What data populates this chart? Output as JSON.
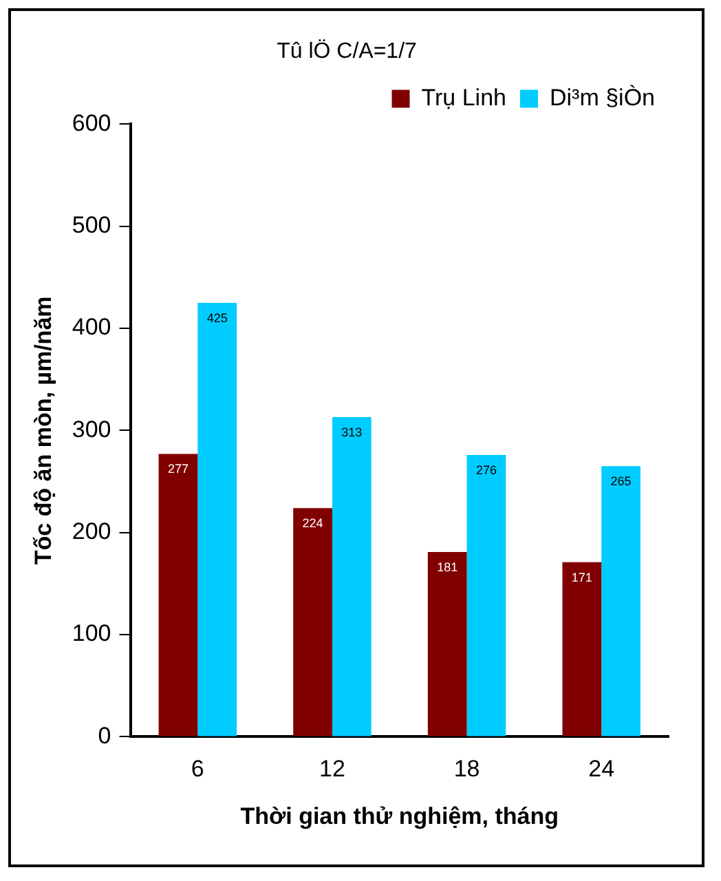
{
  "chart_data": {
    "type": "bar",
    "title": "Tû lÖ C/A=1/7",
    "xlabel": "Thời gian thử nghiệm, tháng",
    "ylabel": "Tốc độ ăn mòn, µm/năm",
    "categories": [
      "6",
      "12",
      "18",
      "24"
    ],
    "series": [
      {
        "name": "Trụ Linh",
        "color": "#800000",
        "values": [
          277,
          224,
          181,
          171
        ]
      },
      {
        "name": "Di³m §iÒn",
        "color": "#00ccff",
        "values": [
          425,
          313,
          276,
          265
        ]
      }
    ],
    "ylim": [
      0,
      600
    ],
    "yticks": [
      0,
      100,
      200,
      300,
      400,
      500,
      600
    ],
    "grid": false,
    "legend": "top right",
    "data_labels": true
  }
}
